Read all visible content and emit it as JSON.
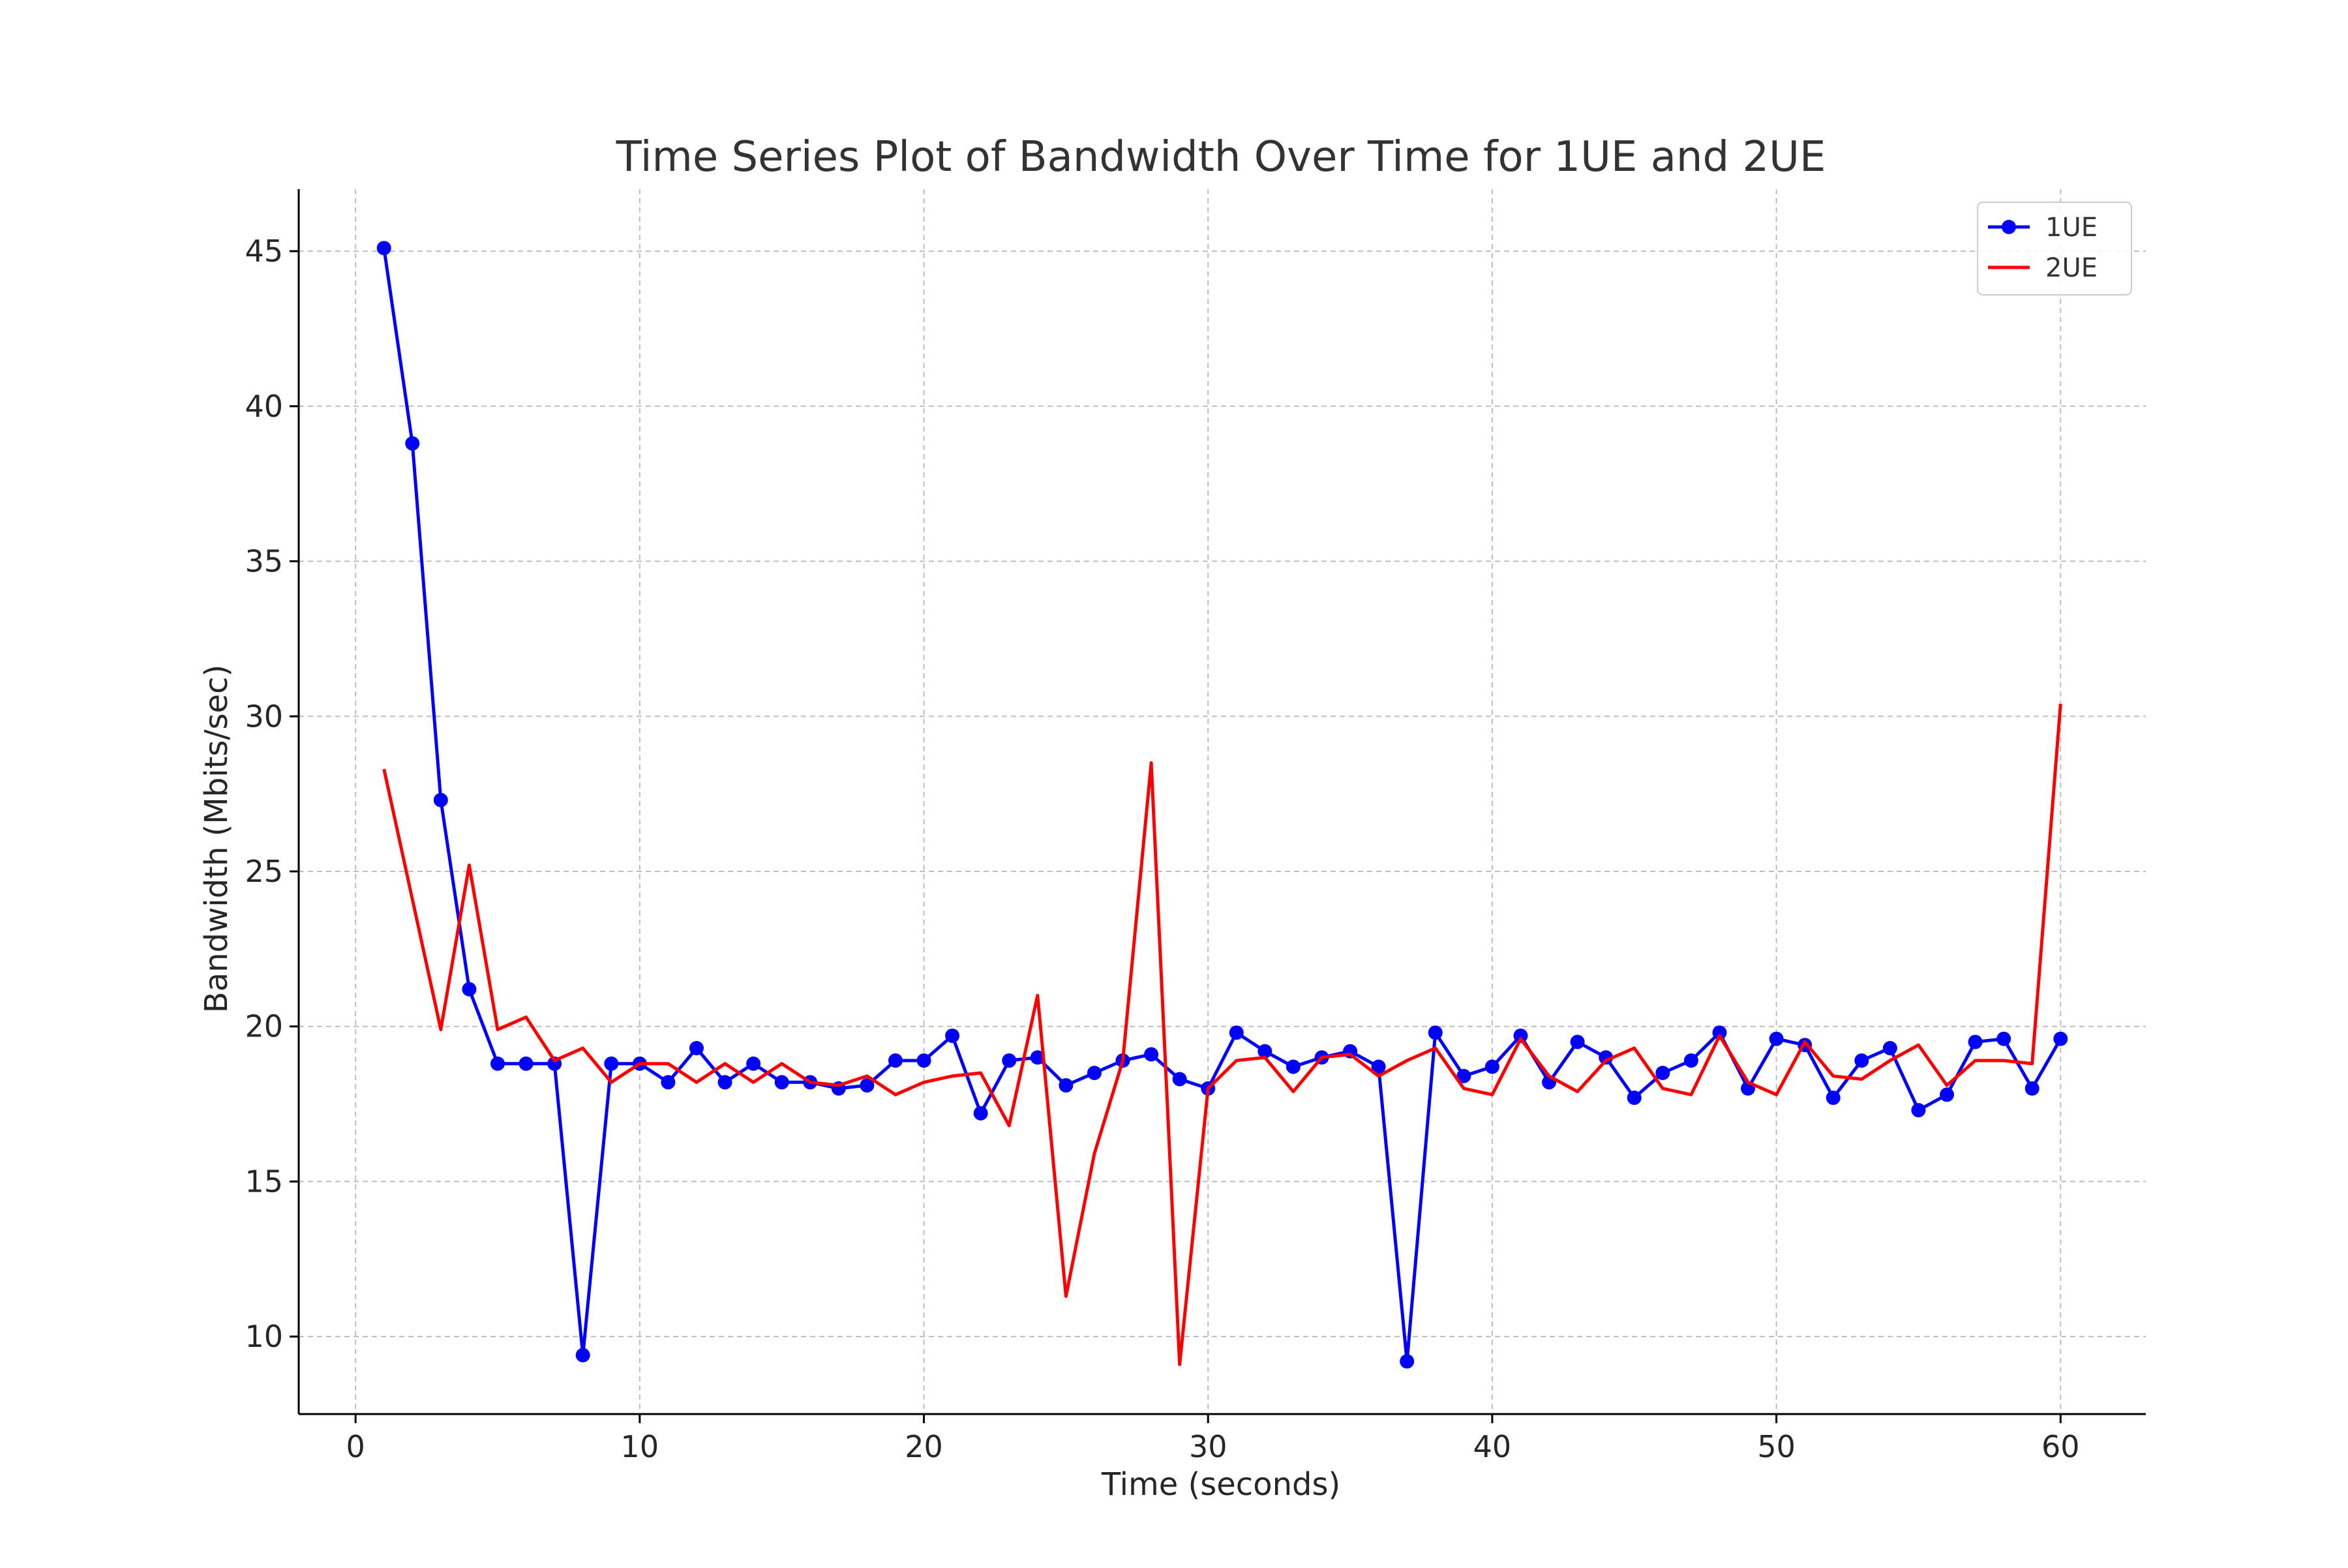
{
  "chart_data": {
    "type": "line",
    "title": "Time Series Plot of Bandwidth Over Time for 1UE and 2UE",
    "xlabel": "Time (seconds)",
    "ylabel": "Bandwidth (Mbits/sec)",
    "xlim": [
      -2,
      63
    ],
    "ylim": [
      7.5,
      47
    ],
    "x_ticks": [
      0,
      10,
      20,
      30,
      40,
      50,
      60
    ],
    "y_ticks": [
      10,
      15,
      20,
      25,
      30,
      35,
      40,
      45
    ],
    "grid": true,
    "legend_position": "top-right",
    "x": [
      1,
      2,
      3,
      4,
      5,
      6,
      7,
      8,
      9,
      10,
      11,
      12,
      13,
      14,
      15,
      16,
      17,
      18,
      19,
      20,
      21,
      22,
      23,
      24,
      25,
      26,
      27,
      28,
      29,
      30,
      31,
      32,
      33,
      34,
      35,
      36,
      37,
      38,
      39,
      40,
      41,
      42,
      43,
      44,
      45,
      46,
      47,
      48,
      49,
      50,
      51,
      52,
      53,
      54,
      55,
      56,
      57,
      58,
      59,
      60
    ],
    "series": [
      {
        "name": "1UE",
        "color": "#0000ff",
        "marker": "circle",
        "values": [
          45.1,
          38.8,
          27.3,
          21.2,
          18.8,
          18.8,
          18.8,
          9.4,
          18.8,
          18.8,
          18.2,
          19.3,
          18.2,
          18.8,
          18.2,
          18.2,
          18.0,
          18.1,
          18.9,
          18.9,
          19.7,
          17.2,
          18.9,
          19.0,
          18.1,
          18.5,
          18.9,
          19.1,
          18.3,
          18.0,
          19.8,
          19.2,
          18.7,
          19.0,
          19.2,
          18.7,
          9.2,
          19.8,
          18.4,
          18.7,
          19.7,
          18.2,
          19.5,
          19.0,
          17.7,
          18.5,
          18.9,
          19.8,
          18.0,
          19.6,
          19.4,
          17.7,
          18.9,
          19.3,
          17.3,
          17.8,
          19.5,
          19.6,
          18.0,
          19.6
        ]
      },
      {
        "name": "2UE",
        "color": "#ff0000",
        "marker": "none",
        "values": [
          28.3,
          24.1,
          19.9,
          25.2,
          19.9,
          20.3,
          18.9,
          19.3,
          18.2,
          18.8,
          18.8,
          18.2,
          18.8,
          18.2,
          18.8,
          18.2,
          18.1,
          18.4,
          17.8,
          18.2,
          18.4,
          18.5,
          16.8,
          21.0,
          11.3,
          15.9,
          18.9,
          28.5,
          9.1,
          18.0,
          18.9,
          19.0,
          17.9,
          19.0,
          19.1,
          18.4,
          18.9,
          19.3,
          18.0,
          17.8,
          19.6,
          18.4,
          17.9,
          18.9,
          19.3,
          18.0,
          17.8,
          19.7,
          18.2,
          17.8,
          19.5,
          18.4,
          18.3,
          18.9,
          19.4,
          18.1,
          18.9,
          18.9,
          18.8,
          30.4
        ]
      }
    ]
  }
}
